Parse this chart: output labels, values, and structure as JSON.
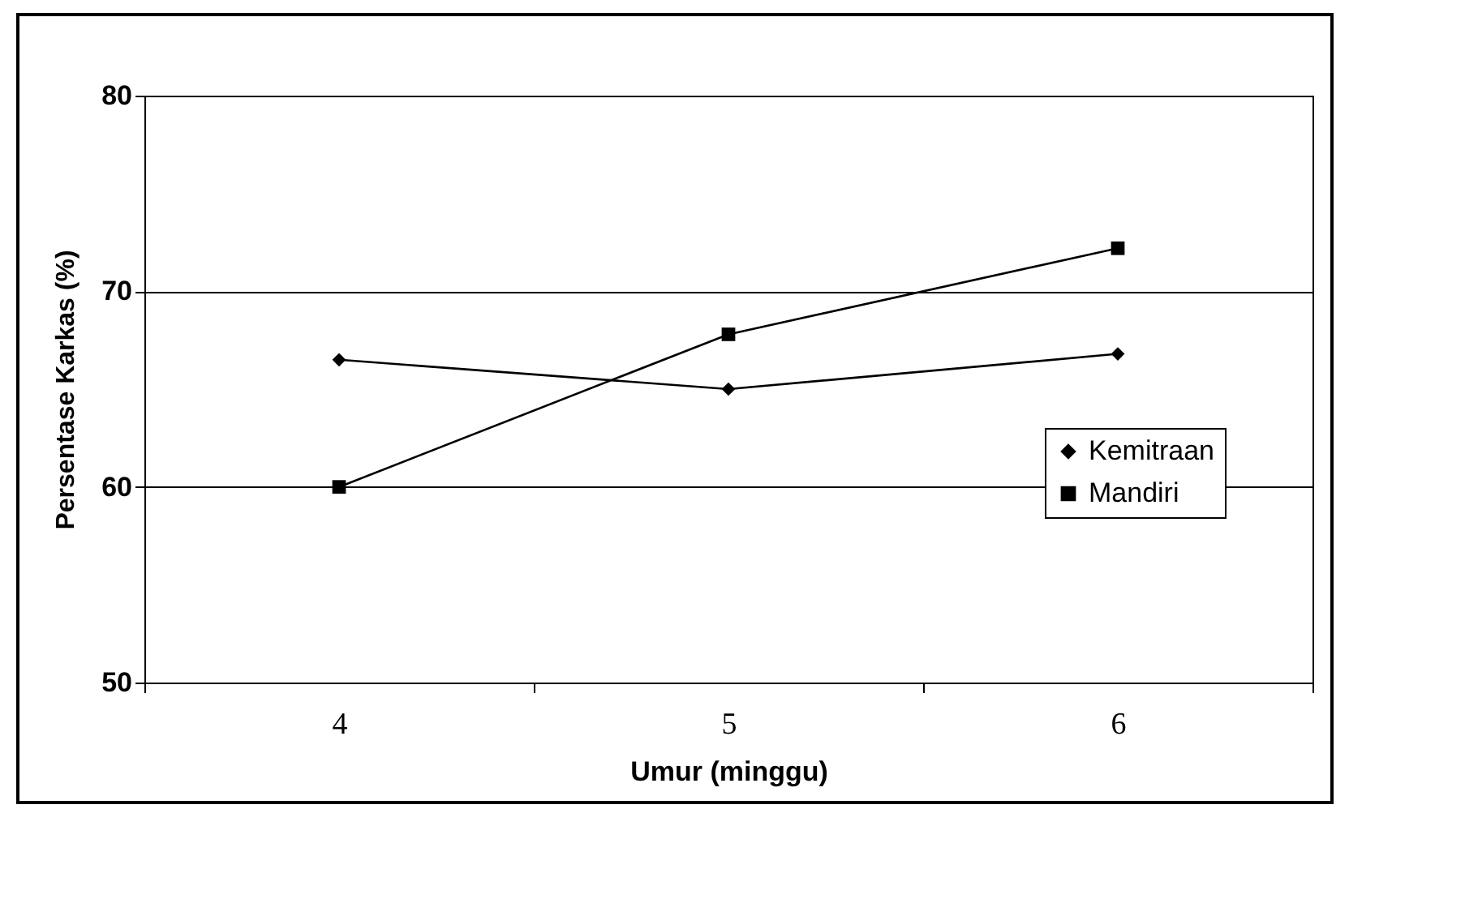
{
  "chart_data": {
    "type": "line",
    "xlabel": "Umur (minggu)",
    "ylabel": "Persentase Karkas (%)",
    "categories": [
      "4",
      "5",
      "6"
    ],
    "series": [
      {
        "name": "Kemitraan",
        "color": "#000000",
        "marker": "diamond",
        "values": [
          66.5,
          65,
          66.8
        ]
      },
      {
        "name": "Mandiri",
        "color": "#000000",
        "marker": "square",
        "values": [
          60,
          67.8,
          72.2
        ]
      }
    ],
    "ylim": [
      50,
      80
    ],
    "yticks": [
      50,
      60,
      70,
      80
    ],
    "grid": "y",
    "legend": "right",
    "line_style": "solid"
  }
}
